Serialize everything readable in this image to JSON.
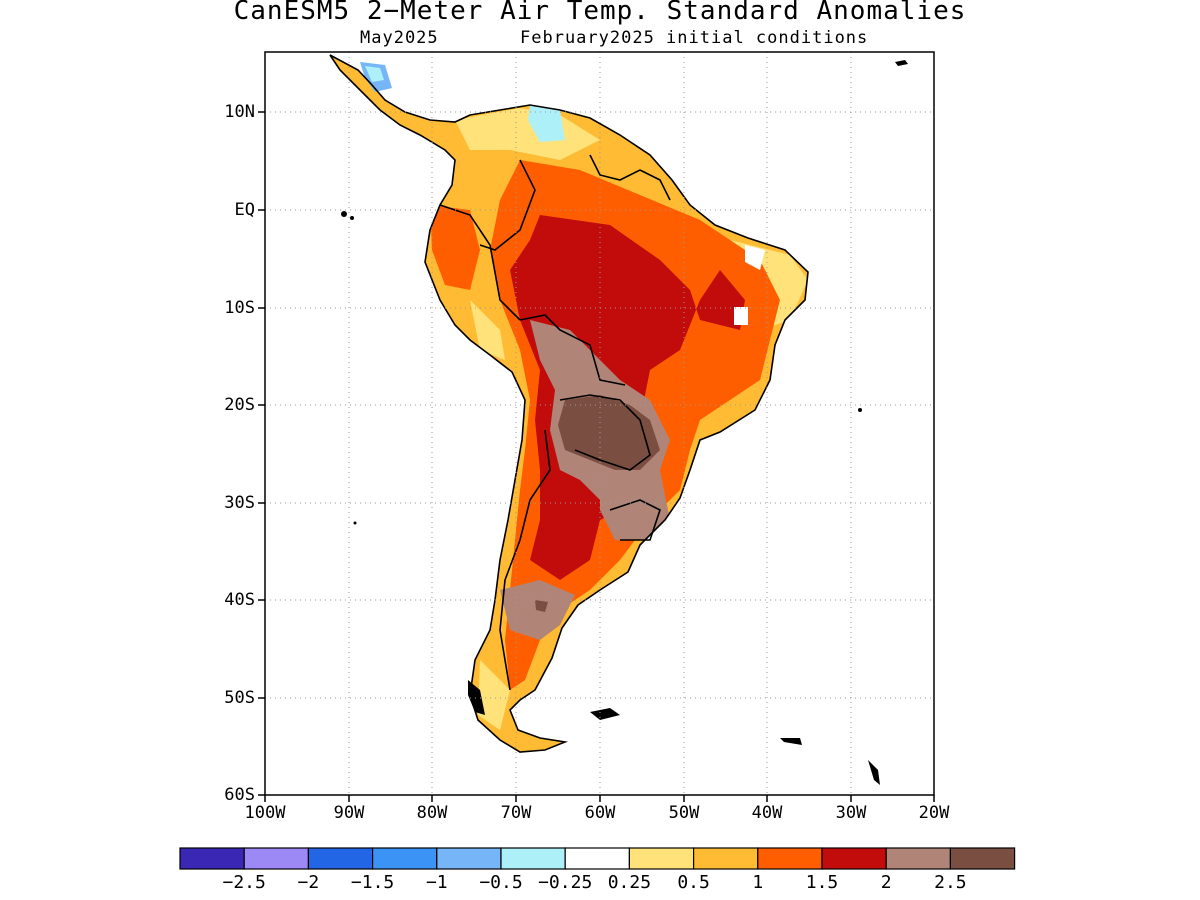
{
  "title": "CanESM5 2−Meter Air Temp. Standard Anomalies",
  "subtitle_month": "May2025",
  "subtitle_conditions": "February2025 initial conditions",
  "lat_labels": [
    "10N",
    "EQ",
    "10S",
    "20S",
    "30S",
    "40S",
    "50S",
    "60S"
  ],
  "lon_labels": [
    "100W",
    "90W",
    "80W",
    "70W",
    "60W",
    "50W",
    "40W",
    "30W",
    "20W"
  ],
  "map": {
    "lon_range": [
      -100,
      -20
    ],
    "lat_range": [
      -60,
      15
    ]
  },
  "colorbar": {
    "colors": [
      "#3a28b4",
      "#9c89f5",
      "#2266e6",
      "#3b94f5",
      "#76b6f8",
      "#aef0f8",
      "#ffffff",
      "#ffe27a",
      "#ffbb33",
      "#ff5e00",
      "#c20b0b",
      "#b08476",
      "#7a4e40"
    ],
    "labels": [
      "−2.5",
      "−2",
      "−1.5",
      "−1",
      "−0.5",
      "−0.25",
      "0.25",
      "0.5",
      "1",
      "1.5",
      "2",
      "2.5"
    ]
  },
  "land_color": "#ffffff",
  "grid_color": "#9a9a9a"
}
